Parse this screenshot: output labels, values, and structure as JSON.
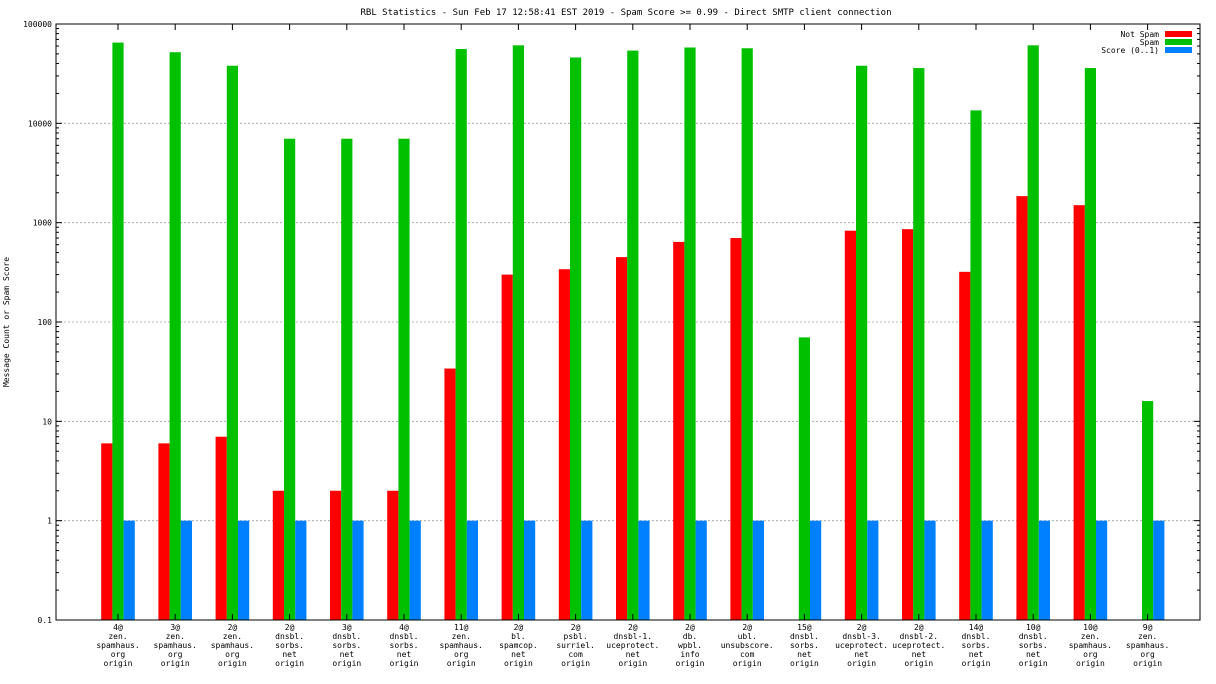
{
  "chart_data": {
    "type": "bar",
    "title": "RBL Statistics - Sun Feb 17 12:58:41 EST 2019 - Spam Score >= 0.99 - Direct SMTP client connection",
    "ylabel": "Message Count or Spam Score",
    "xlabel": "",
    "yscale": "log",
    "ylim": [
      0.1,
      100000
    ],
    "yticks": [
      "0.1",
      "1",
      "10",
      "100",
      "1000",
      "10000",
      "100000"
    ],
    "grid": true,
    "legend_position": "top-right",
    "categories": [
      [
        "4@",
        "zen.",
        "spamhaus.",
        "org",
        "origin"
      ],
      [
        "3@",
        "zen.",
        "spamhaus.",
        "org",
        "origin"
      ],
      [
        "2@",
        "zen.",
        "spamhaus.",
        "org",
        "origin"
      ],
      [
        "2@",
        "dnsbl.",
        "sorbs.",
        "net",
        "origin"
      ],
      [
        "3@",
        "dnsbl.",
        "sorbs.",
        "net",
        "origin"
      ],
      [
        "4@",
        "dnsbl.",
        "sorbs.",
        "net",
        "origin"
      ],
      [
        "11@",
        "zen.",
        "spamhaus.",
        "org",
        "origin"
      ],
      [
        "2@",
        "bl.",
        "spamcop.",
        "net",
        "origin"
      ],
      [
        "2@",
        "psbl.",
        "surriel.",
        "com",
        "origin"
      ],
      [
        "2@",
        "dnsbl-1.",
        "uceprotect.",
        "net",
        "origin"
      ],
      [
        "2@",
        "db.",
        "wpbl.",
        "info",
        "origin"
      ],
      [
        "2@",
        "ubl.",
        "unsubscore.",
        "com",
        "origin"
      ],
      [
        "15@",
        "dnsbl.",
        "sorbs.",
        "net",
        "origin"
      ],
      [
        "2@",
        "dnsbl-3.",
        "uceprotect.",
        "net",
        "origin"
      ],
      [
        "2@",
        "dnsbl-2.",
        "uceprotect.",
        "net",
        "origin"
      ],
      [
        "14@",
        "dnsbl.",
        "sorbs.",
        "net",
        "origin"
      ],
      [
        "10@",
        "dnsbl.",
        "sorbs.",
        "net",
        "origin"
      ],
      [
        "10@",
        "zen.",
        "spamhaus.",
        "org",
        "origin"
      ],
      [
        "9@",
        "zen.",
        "spamhaus.",
        "org",
        "origin"
      ]
    ],
    "series": [
      {
        "name": "Not Spam",
        "color": "#ff0000",
        "values": [
          6,
          6,
          7,
          2,
          2,
          2,
          34,
          300,
          340,
          450,
          640,
          700,
          null,
          830,
          860,
          320,
          1850,
          1500,
          null
        ]
      },
      {
        "name": "Spam",
        "color": "#00c000",
        "values": [
          65000,
          52000,
          38000,
          7000,
          7000,
          7000,
          56000,
          61000,
          46000,
          54000,
          58000,
          57000,
          70,
          38000,
          36000,
          13500,
          61000,
          36000,
          16
        ]
      },
      {
        "name": "Score (0..1)",
        "color": "#0080ff",
        "values": [
          1,
          1,
          1,
          1,
          1,
          1,
          1,
          1,
          1,
          1,
          1,
          1,
          1,
          1,
          1,
          1,
          1,
          1,
          1
        ]
      }
    ]
  }
}
